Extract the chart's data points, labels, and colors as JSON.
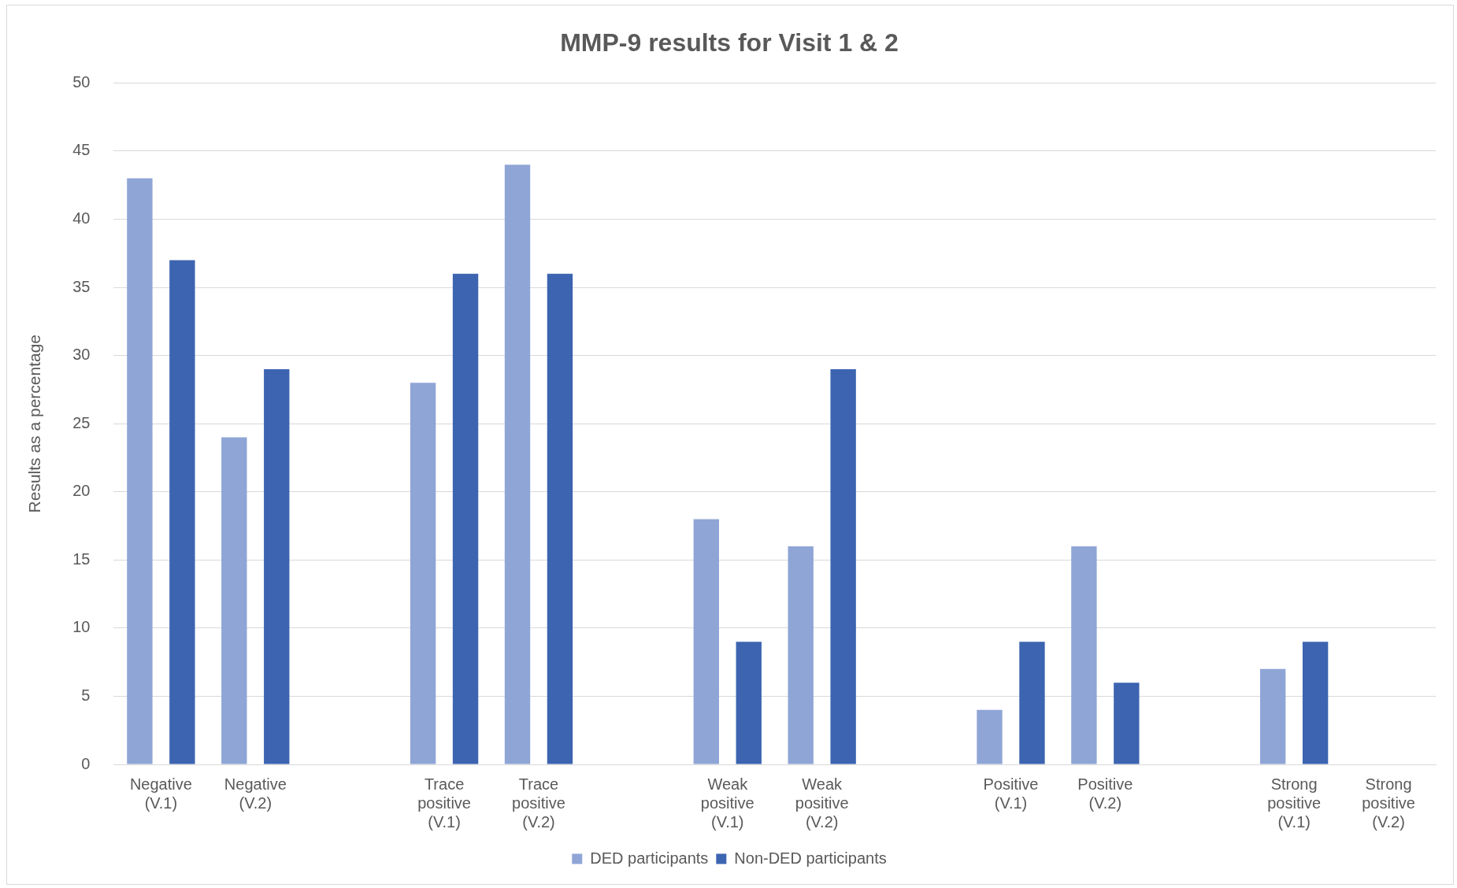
{
  "chart_data": {
    "type": "bar",
    "title": "MMP-9 results for Visit 1 & 2",
    "ylabel": "Results as a percentage",
    "categories": [
      "Negative (V.1)",
      "Negative (V.2)",
      null,
      "Trace positive (V.1)",
      "Trace positive (V.2)",
      null,
      "Weak positive (V.1)",
      "Weak positive (V.2)",
      null,
      "Positive (V.1)",
      "Positive (V.2)",
      null,
      "Strong positive (V.1)",
      "Strong positive (V.2)"
    ],
    "series": [
      {
        "name": "DED participants",
        "color": "#8fa5d6",
        "values": [
          43,
          24,
          null,
          28,
          44,
          null,
          18,
          16,
          null,
          4,
          16,
          null,
          7,
          0
        ]
      },
      {
        "name": "Non-DED participants",
        "color": "#3c64b0",
        "values": [
          37,
          29,
          null,
          36,
          36,
          null,
          9,
          29,
          null,
          9,
          6,
          null,
          9,
          0
        ]
      }
    ],
    "ylim": [
      0,
      50
    ],
    "yticks": [
      0,
      5,
      10,
      15,
      20,
      25,
      30,
      35,
      40,
      45,
      50
    ],
    "grid": "y",
    "legend": "bottom"
  }
}
